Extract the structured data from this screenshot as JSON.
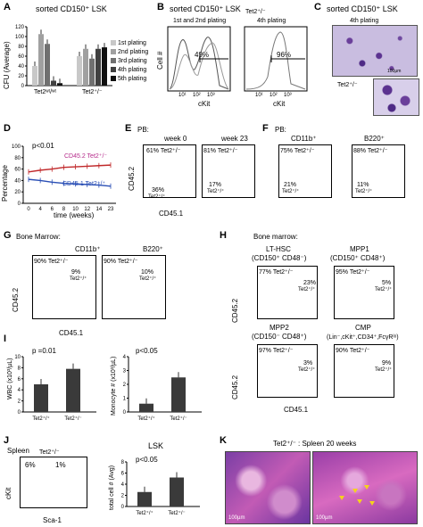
{
  "panels": {
    "A": {
      "letter": "A",
      "title": "sorted CD150⁺ LSK",
      "ylabel": "CFU (Average)",
      "legend": [
        "1st plating",
        "2nd plating",
        "3rd plating",
        "4th plating",
        "5th plating"
      ],
      "groups": [
        "Tet2ʷᵗ/ʷᵗ",
        "Tet2⁺/⁻"
      ]
    },
    "B": {
      "letter": "B",
      "title": "sorted CD150⁺ LSK",
      "sub_left": "1st and 2nd plating",
      "genotype": "Tet2⁺/⁻",
      "sub_right": "4th plating",
      "ylabel": "Cell #",
      "xlabel": "cKit",
      "pct_left": "49%",
      "pct_right": "96%"
    },
    "C": {
      "letter": "C",
      "title": "sorted CD150⁺ LSK",
      "sub": "4th plating",
      "genotype": "Tet2⁺/⁻",
      "scale": "100μm"
    },
    "D": {
      "letter": "D",
      "pvalue": "p<0.01",
      "ylabel": "Percentage",
      "xlabel": "time (weeks)",
      "series1": "CD45.2 Tet2⁺/⁻",
      "series2": "CD45.1 Tet2⁺/⁺",
      "xticks": [
        "0",
        "4",
        "6",
        "8",
        "10",
        "12",
        "14",
        "23"
      ],
      "yticks": [
        "0",
        "20",
        "40",
        "60",
        "80",
        "100"
      ]
    },
    "E": {
      "letter": "E",
      "label": "PB:",
      "col1": "week 0",
      "col2": "week 23",
      "g1": "61% Tet2⁺/⁻",
      "g2": "36%",
      "g2b": "Tet2⁺/⁺",
      "g3": "81% Tet2⁺/⁻",
      "g4": "17%",
      "g4b": "Tet2⁺/⁺",
      "ylabel": "CD45.2",
      "xlabel": "CD45.1"
    },
    "F": {
      "letter": "F",
      "label": "PB:",
      "col1": "CD11b⁺",
      "col2": "B220⁺",
      "g1": "75% Tet2⁺/⁻",
      "g2": "21%",
      "g2b": "Tet2⁺/⁺",
      "g3": "88% Tet2⁺/⁻",
      "g4": "11%",
      "g4b": "Tet2⁺/⁺"
    },
    "G": {
      "letter": "G",
      "label": "Bone Marrow:",
      "col1": "CD11b⁺",
      "col2": "B220⁺",
      "g1": "90% Tet2⁺/⁻",
      "g2": "9%",
      "g2b": "Tet2⁺/⁺",
      "g3": "90% Tet2⁺/⁻",
      "g4": "10%",
      "g4b": "Tet2⁺/⁺",
      "ylabel": "CD45.2",
      "xlabel": "CD45.1"
    },
    "H": {
      "letter": "H",
      "label": "Bone marrow:",
      "c1": "LT-HSC",
      "c1b": "(CD150⁺ CD48⁻)",
      "c2": "MPP1",
      "c2b": "(CD150⁺ CD48⁺)",
      "c3": "MPP2",
      "c3b": "(CD150⁻ CD48⁺)",
      "c4": "CMP",
      "c4b": "(Lin⁻,cKit⁺,CD34⁺,FcγRˡᵒ)",
      "p1": "77% Tet2⁺/⁻",
      "p1b": "23%",
      "p1c": "Tet2⁺/⁺",
      "p2": "95% Tet2⁺/⁻",
      "p2b": "5%",
      "p2c": "Tet2⁺/⁺",
      "p3": "97% Tet2⁺/⁻",
      "p3b": "3%",
      "p3c": "Tet2⁺/⁺",
      "p4": "90% Tet2⁺/⁻",
      "p4b": "9%",
      "p4c": "Tet2⁺/⁺",
      "ylabel": "CD45.2",
      "xlabel": "CD45.1"
    },
    "I": {
      "letter": "I",
      "p1": "p =0.01",
      "p2": "p<0.05",
      "ylabel1": "WBC (x10³/µL)",
      "ylabel2": "Monocyte # (x10³/µL)"
    },
    "J": {
      "letter": "J",
      "label": "Spleen",
      "genotype": "Tet2⁺/⁻",
      "g1": "6%",
      "g2": "1%",
      "ylabel": "cKit",
      "xlabel": "Sca-1",
      "bar_title": "LSK",
      "pvalue": "p<0.05",
      "bar_ylabel": "total cell # (Avg)"
    },
    "K": {
      "letter": "K",
      "title": "Tet2⁺/⁻ : Spleen 20 weeks",
      "scale1": "100µm",
      "scale2": "100µm"
    }
  },
  "chart_data": [
    {
      "panel": "A",
      "type": "bar",
      "ylim": [
        0,
        120
      ],
      "categories": [
        "Tet2+/+",
        "Tet2+/-"
      ],
      "series": [
        {
          "name": "1st plating",
          "values": [
            40,
            60
          ]
        },
        {
          "name": "2nd plating",
          "values": [
            105,
            75
          ]
        },
        {
          "name": "3rd plating",
          "values": [
            85,
            55
          ]
        },
        {
          "name": "4th plating",
          "values": [
            10,
            75
          ]
        },
        {
          "name": "5th plating",
          "values": [
            5,
            78
          ]
        }
      ],
      "yticks": [
        "0",
        "20",
        "40",
        "60",
        "80",
        "100",
        "120"
      ]
    },
    {
      "panel": "D",
      "type": "line",
      "ylim": [
        0,
        100
      ],
      "x": [
        0,
        4,
        6,
        8,
        10,
        12,
        14,
        23
      ],
      "series": [
        {
          "name": "CD45.2 Tet2+/-",
          "values": [
            55,
            58,
            60,
            63,
            64,
            65,
            66,
            67
          ]
        },
        {
          "name": "CD45.1 Tet2+/+",
          "values": [
            42,
            40,
            37,
            35,
            34,
            33,
            32,
            30
          ]
        }
      ]
    },
    {
      "panel": "I-WBC",
      "type": "bar",
      "ylim": [
        0,
        10
      ],
      "categories": [
        "Tet2+/+",
        "Tet2+/-"
      ],
      "values": [
        5,
        7.8
      ],
      "yticks": [
        "0",
        "2",
        "4",
        "6",
        "8",
        "10"
      ]
    },
    {
      "panel": "I-Monocyte",
      "type": "bar",
      "ylim": [
        0,
        4
      ],
      "categories": [
        "Tet2+/+",
        "Tet2+/-"
      ],
      "values": [
        0.6,
        2.5
      ],
      "yticks": [
        "0",
        "1",
        "2",
        "3",
        "4"
      ]
    },
    {
      "panel": "J-LSK",
      "type": "bar",
      "ylim": [
        0,
        8
      ],
      "categories": [
        "Tet2+/+",
        "Tet2+/-"
      ],
      "values": [
        2.6,
        5.2
      ],
      "yticks": [
        "0",
        "2",
        "4",
        "6",
        "8"
      ]
    }
  ],
  "colors": {
    "red": "#c0282a",
    "blue": "#2a4fb5",
    "purple": "#b52a8a",
    "gray1": "#c8c8c8",
    "gray2": "#a0a0a0",
    "gray3": "#707070",
    "gray4": "#404040",
    "gray5": "#101010"
  }
}
